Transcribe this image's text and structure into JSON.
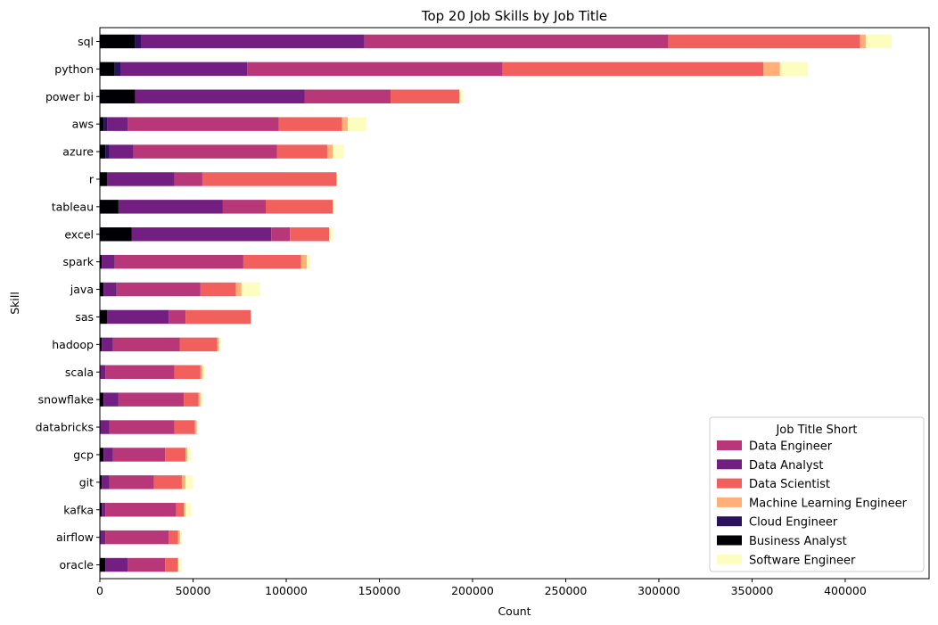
{
  "chart_data": {
    "type": "bar",
    "orientation": "horizontal",
    "stacked": true,
    "title": "Top 20 Job Skills by Job Title",
    "xlabel": "Count",
    "ylabel": "Skill",
    "xlim": [
      0,
      445000
    ],
    "xticks": [
      0,
      50000,
      100000,
      150000,
      200000,
      250000,
      300000,
      350000,
      400000
    ],
    "grid": false,
    "legend_title": "Job Title Short",
    "legend_position": "lower-right",
    "categories": [
      "sql",
      "python",
      "power bi",
      "aws",
      "azure",
      "r",
      "tableau",
      "excel",
      "spark",
      "java",
      "sas",
      "hadoop",
      "scala",
      "snowflake",
      "databricks",
      "gcp",
      "git",
      "kafka",
      "airflow",
      "oracle"
    ],
    "stack_order": [
      "Business Analyst",
      "Cloud Engineer",
      "Data Analyst",
      "Data Engineer",
      "Data Scientist",
      "Machine Learning Engineer",
      "Software Engineer"
    ],
    "series": [
      {
        "name": "Data Engineer",
        "color": "#b73779",
        "values": [
          163000,
          137000,
          46000,
          81000,
          77000,
          15000,
          23000,
          10000,
          69000,
          45000,
          9000,
          36000,
          37000,
          35000,
          35000,
          28000,
          24000,
          38000,
          34000,
          20000
        ]
      },
      {
        "name": "Data Analyst",
        "color": "#721f81",
        "values": [
          120000,
          68000,
          91000,
          11000,
          13000,
          36000,
          56000,
          75000,
          7000,
          7000,
          33000,
          6000,
          3000,
          8000,
          5000,
          5000,
          4000,
          2000,
          3000,
          12000
        ]
      },
      {
        "name": "Data Scientist",
        "color": "#f1605d",
        "values": [
          103000,
          140000,
          37000,
          34000,
          27000,
          72000,
          36000,
          21000,
          31000,
          19000,
          35000,
          20000,
          14000,
          8000,
          11000,
          11000,
          15000,
          4000,
          5000,
          7000
        ]
      },
      {
        "name": "Machine Learning Engineer",
        "color": "#feb078",
        "values": [
          3000,
          9000,
          0,
          3000,
          3000,
          0,
          0,
          0,
          3000,
          3000,
          0,
          1000,
          1000,
          1000,
          1000,
          1000,
          2000,
          1000,
          1000,
          0
        ]
      },
      {
        "name": "Cloud Engineer",
        "color": "#2c115f",
        "values": [
          3000,
          3000,
          0,
          2000,
          2000,
          0,
          0,
          0,
          0,
          0,
          0,
          0,
          0,
          0,
          0,
          0,
          0,
          0,
          0,
          0
        ]
      },
      {
        "name": "Business Analyst",
        "color": "#000004",
        "values": [
          19000,
          8000,
          19000,
          2000,
          3000,
          4000,
          10000,
          17000,
          1000,
          2000,
          4000,
          1000,
          0,
          2000,
          0,
          2000,
          1000,
          1000,
          0,
          3000
        ]
      },
      {
        "name": "Software Engineer",
        "color": "#fcfdbf",
        "values": [
          14000,
          15000,
          2000,
          10000,
          6000,
          1000,
          1000,
          2000,
          2000,
          10000,
          0,
          1000,
          1000,
          1000,
          0,
          2000,
          4000,
          3000,
          1000,
          2000
        ]
      }
    ]
  }
}
